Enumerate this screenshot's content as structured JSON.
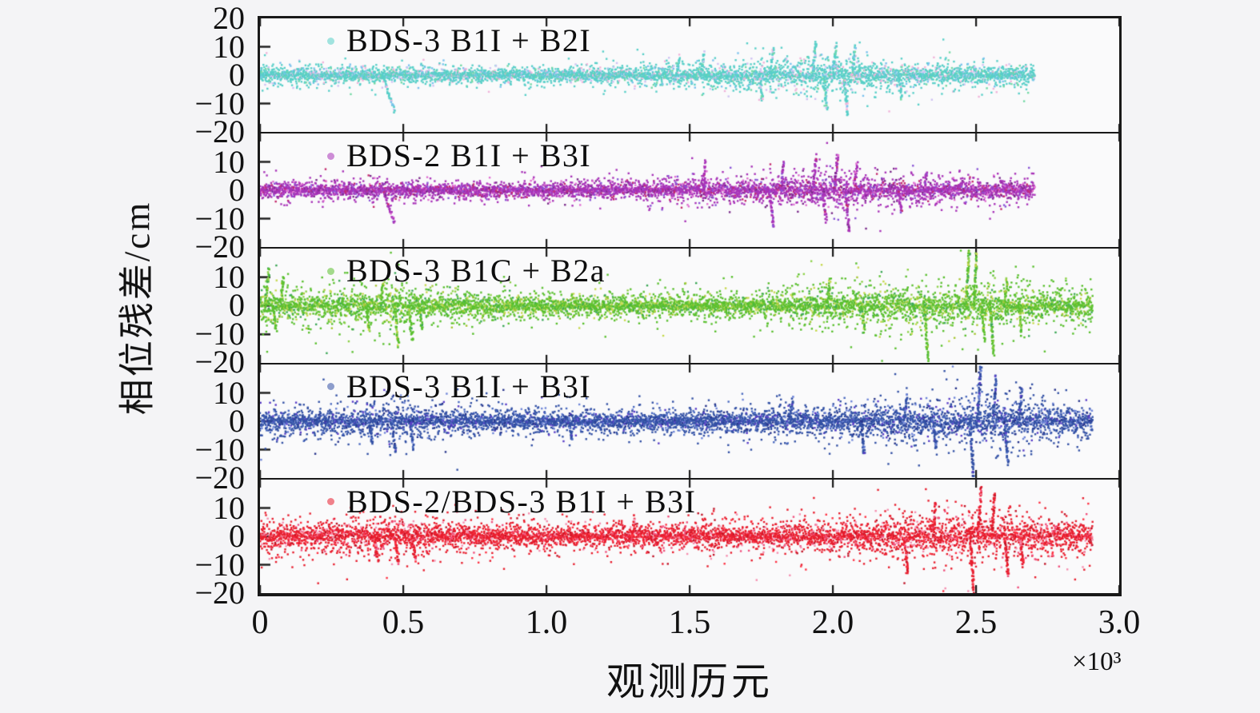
{
  "figure": {
    "background": "#f4f4f6",
    "panel_background": "#fafafb",
    "axis_color": "#191919"
  },
  "chart_data": {
    "type": "scatter",
    "title": "",
    "xlabel": "观测历元",
    "ylabel": "相位残差/cm",
    "x_multiplier": "×10³",
    "xlim": [
      0,
      3000
    ],
    "ylim": [
      -20,
      20
    ],
    "grid": false,
    "legend_position": "upper-left-inside-each-panel",
    "xtick_labels": [
      "0",
      "0.5",
      "1.0",
      "1.5",
      "2.0",
      "2.5",
      "3.0"
    ],
    "ytick_labels_first_panel": [
      "20",
      "10",
      "0",
      "−10",
      "−20"
    ],
    "ytick_labels_other_panels": [
      "10",
      "0",
      "−10",
      "−20"
    ],
    "ytick_values_first_panel": [
      20,
      10,
      0,
      -10,
      -20
    ],
    "ytick_values_other_panels": [
      10,
      0,
      -10,
      -20
    ],
    "inner_ytick_values": [
      10,
      0,
      -10
    ],
    "series": [
      {
        "name": "BDS-3 B1I + B2I",
        "color": "#58cfc8",
        "accents": [
          "#74d9a6",
          "#7cc2ee",
          "#cfc2f2",
          "#f0b4da"
        ],
        "seed": 11,
        "x_end": 2705,
        "envelope": [
          [
            0,
            1.7
          ],
          [
            120,
            1.5
          ],
          [
            400,
            1.2
          ],
          [
            700,
            1.2
          ],
          [
            1000,
            1.3
          ],
          [
            1300,
            1.5
          ],
          [
            1500,
            1.8
          ],
          [
            1700,
            2.1
          ],
          [
            1850,
            2.5
          ],
          [
            1950,
            3.3
          ],
          [
            2050,
            3.1
          ],
          [
            2150,
            2.3
          ],
          [
            2300,
            1.9
          ],
          [
            2500,
            1.7
          ],
          [
            2705,
            1.6
          ]
        ],
        "outliers": [
          [
            430,
            -13,
            40
          ],
          [
            1455,
            6,
            10
          ],
          [
            1540,
            8,
            10
          ],
          [
            1745,
            -9,
            10
          ],
          [
            1782,
            9,
            10
          ],
          [
            1930,
            12,
            12
          ],
          [
            1968,
            -12,
            12
          ],
          [
            2000,
            11,
            12
          ],
          [
            2040,
            -14,
            12
          ],
          [
            2068,
            10,
            10
          ],
          [
            2230,
            -8,
            10
          ]
        ]
      },
      {
        "name": "BDS-2 B1I + B3I",
        "color": "#a833b8",
        "accents": [
          "#7a2a8a",
          "#c42a6c",
          "#e070d2",
          "#8a55d6"
        ],
        "seed": 22,
        "x_end": 2705,
        "envelope": [
          [
            0,
            1.6
          ],
          [
            300,
            1.4
          ],
          [
            600,
            1.3
          ],
          [
            900,
            1.3
          ],
          [
            1200,
            1.5
          ],
          [
            1500,
            1.8
          ],
          [
            1700,
            2.0
          ],
          [
            1850,
            2.4
          ],
          [
            1950,
            3.1
          ],
          [
            2050,
            3.0
          ],
          [
            2200,
            2.1
          ],
          [
            2400,
            1.9
          ],
          [
            2705,
            1.7
          ]
        ],
        "outliers": [
          [
            430,
            -12,
            40
          ],
          [
            1548,
            10,
            8
          ],
          [
            1782,
            -13,
            10
          ],
          [
            1820,
            10,
            8
          ],
          [
            1930,
            12,
            12
          ],
          [
            1965,
            -11,
            12
          ],
          [
            2005,
            13,
            12
          ],
          [
            2045,
            -15,
            12
          ],
          [
            2075,
            10,
            10
          ],
          [
            2230,
            -8,
            10
          ],
          [
            2320,
            6,
            8
          ]
        ]
      },
      {
        "name": "BDS-3 B1C + B2a",
        "color": "#5bc030",
        "accents": [
          "#8ed24a",
          "#c6d94f",
          "#3da858",
          "#a8c838"
        ],
        "seed": 33,
        "x_end": 2907,
        "envelope": [
          [
            0,
            2.9
          ],
          [
            80,
            2.3
          ],
          [
            250,
            2.7
          ],
          [
            350,
            3.3
          ],
          [
            480,
            3.5
          ],
          [
            560,
            2.5
          ],
          [
            800,
            2.0
          ],
          [
            1100,
            1.8
          ],
          [
            1400,
            1.9
          ],
          [
            1700,
            2.1
          ],
          [
            1900,
            2.7
          ],
          [
            2050,
            3.1
          ],
          [
            2200,
            3.3
          ],
          [
            2350,
            3.7
          ],
          [
            2500,
            3.9
          ],
          [
            2650,
            3.1
          ],
          [
            2907,
            2.5
          ]
        ],
        "outliers": [
          [
            18,
            13,
            14
          ],
          [
            45,
            -9,
            12
          ],
          [
            70,
            10,
            12
          ],
          [
            370,
            -9,
            12
          ],
          [
            420,
            8,
            10
          ],
          [
            470,
            -14,
            14
          ],
          [
            520,
            -12,
            12
          ],
          [
            556,
            -8,
            10
          ],
          [
            1980,
            9,
            10
          ],
          [
            2100,
            -9,
            10
          ],
          [
            2320,
            -19,
            12
          ],
          [
            2465,
            20,
            12
          ],
          [
            2492,
            18,
            10
          ],
          [
            2520,
            -12,
            10
          ],
          [
            2550,
            -17,
            12
          ],
          [
            2600,
            9,
            8
          ],
          [
            2650,
            -10,
            10
          ]
        ]
      },
      {
        "name": "BDS-3 B1I + B3I",
        "color": "#3351a5",
        "accents": [
          "#5a3ec8",
          "#6f86d8",
          "#27348b",
          "#4a6ac0"
        ],
        "seed": 44,
        "x_end": 2907,
        "envelope": [
          [
            0,
            2.3
          ],
          [
            200,
            2.3
          ],
          [
            350,
            2.9
          ],
          [
            500,
            3.1
          ],
          [
            620,
            2.3
          ],
          [
            900,
            2.0
          ],
          [
            1200,
            1.9
          ],
          [
            1500,
            2.0
          ],
          [
            1800,
            2.3
          ],
          [
            2000,
            2.5
          ],
          [
            2150,
            2.9
          ],
          [
            2300,
            3.5
          ],
          [
            2450,
            4.1
          ],
          [
            2600,
            3.5
          ],
          [
            2907,
            2.7
          ]
        ],
        "outliers": [
          [
            380,
            -8,
            12
          ],
          [
            460,
            -11,
            14
          ],
          [
            525,
            -10,
            12
          ],
          [
            1080,
            -7,
            10
          ],
          [
            1850,
            8,
            10
          ],
          [
            2100,
            -12,
            10
          ],
          [
            2250,
            9,
            10
          ],
          [
            2350,
            -10,
            10
          ],
          [
            2480,
            -20,
            12
          ],
          [
            2505,
            20,
            12
          ],
          [
            2560,
            16,
            10
          ],
          [
            2600,
            -15,
            12
          ],
          [
            2650,
            12,
            10
          ]
        ]
      },
      {
        "name": "BDS-2/BDS-3 B1I + B3I",
        "color": "#e81e2e",
        "accents": [
          "#f04f7c",
          "#c01326",
          "#f58fb0",
          "#ff3344"
        ],
        "seed": 55,
        "x_end": 2907,
        "envelope": [
          [
            0,
            2.5
          ],
          [
            200,
            2.5
          ],
          [
            350,
            3.1
          ],
          [
            500,
            3.3
          ],
          [
            620,
            2.5
          ],
          [
            900,
            2.1
          ],
          [
            1200,
            2.0
          ],
          [
            1500,
            2.2
          ],
          [
            1800,
            2.4
          ],
          [
            2000,
            2.7
          ],
          [
            2150,
            3.3
          ],
          [
            2300,
            3.7
          ],
          [
            2450,
            4.3
          ],
          [
            2600,
            3.7
          ],
          [
            2907,
            2.9
          ]
        ],
        "outliers": [
          [
            400,
            -9,
            12
          ],
          [
            470,
            -10,
            14
          ],
          [
            532,
            -9,
            12
          ],
          [
            1300,
            7,
            8
          ],
          [
            2250,
            -13,
            12
          ],
          [
            2350,
            12,
            10
          ],
          [
            2480,
            -20,
            12
          ],
          [
            2508,
            17,
            10
          ],
          [
            2555,
            15,
            10
          ],
          [
            2600,
            -14,
            12
          ],
          [
            2655,
            -11,
            10
          ]
        ]
      }
    ]
  }
}
